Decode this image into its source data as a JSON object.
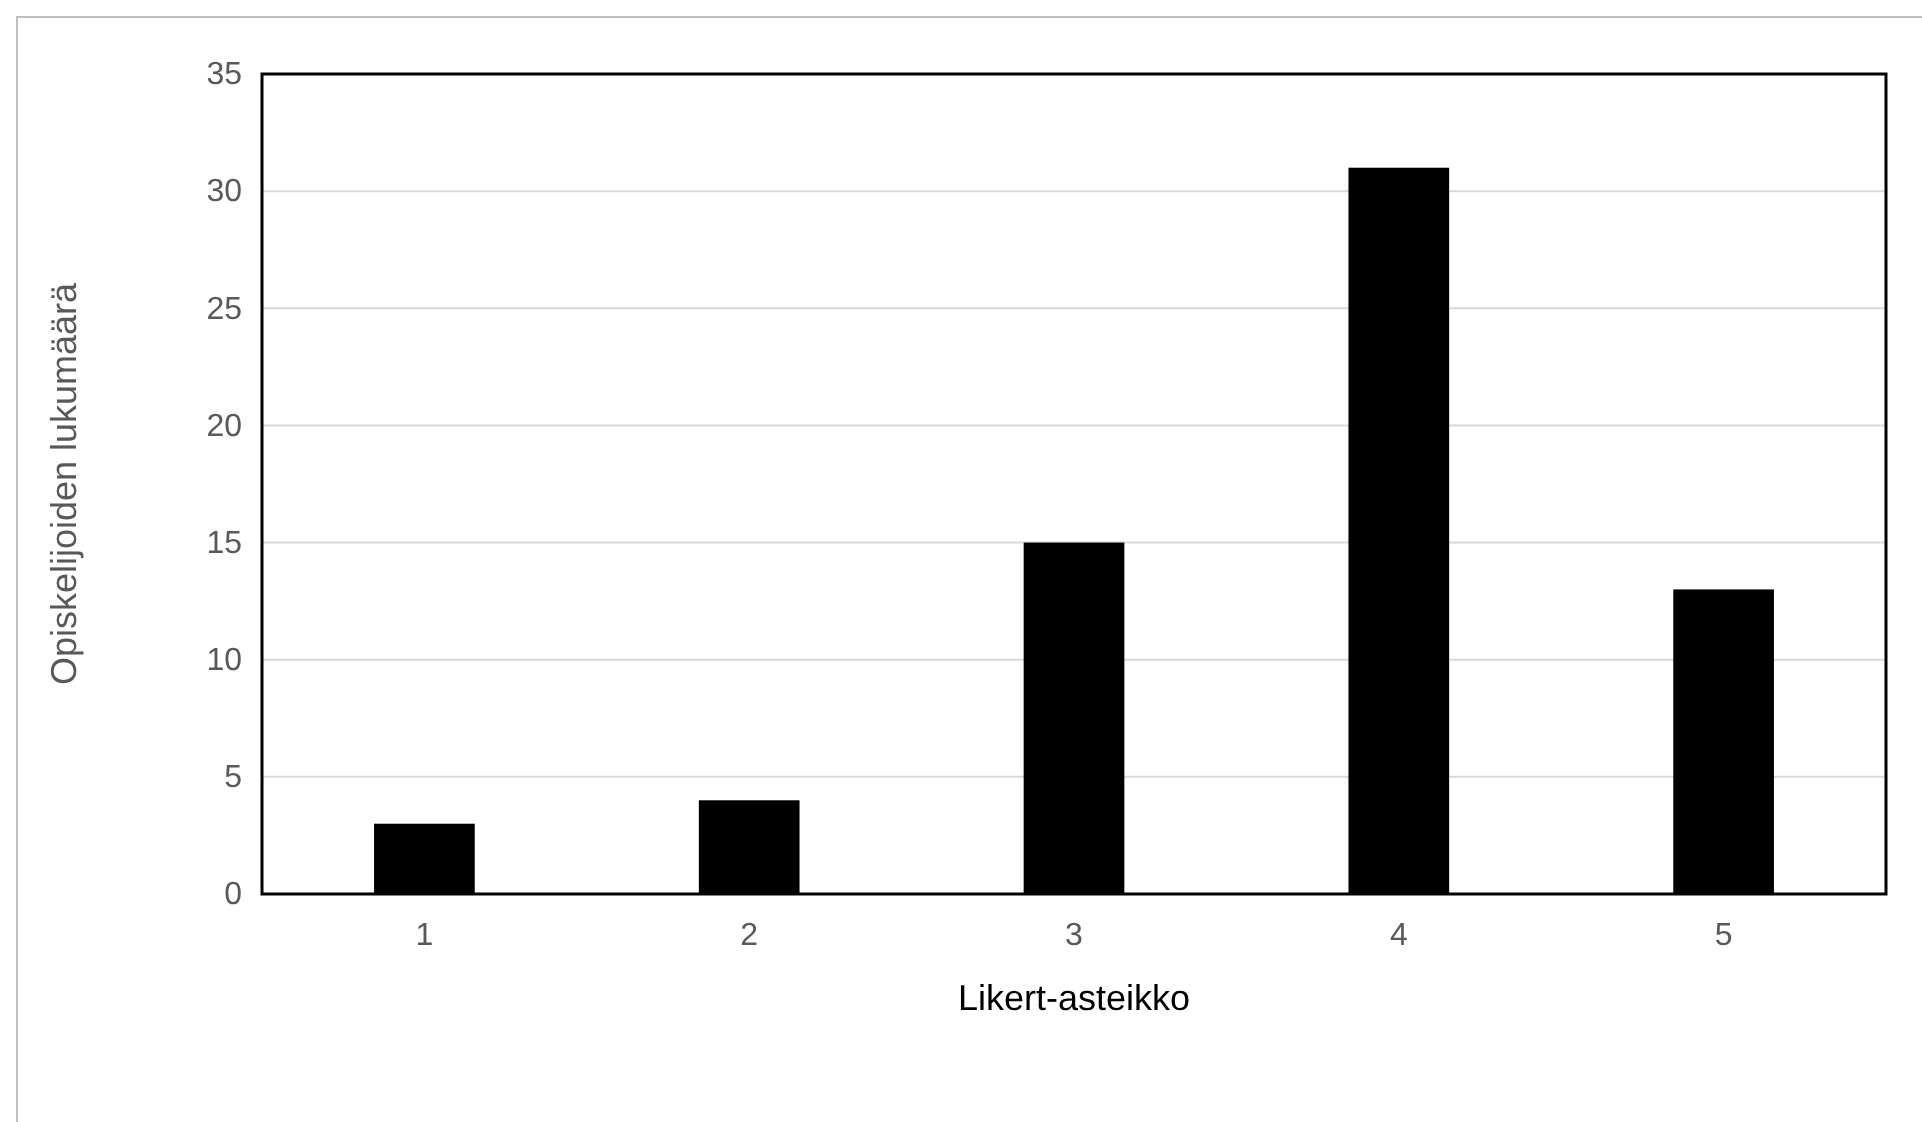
{
  "chart_data": {
    "type": "bar",
    "xlabel": "Likert-asteikko",
    "ylabel": "Opiskelijoiden lukumäärä",
    "categories": [
      "1",
      "2",
      "3",
      "4",
      "5"
    ],
    "values": [
      3,
      4,
      15,
      31,
      13
    ],
    "color": "#000000",
    "ylim": [
      0,
      35
    ],
    "yticks": [
      0,
      5,
      10,
      15,
      20,
      25,
      30,
      35
    ],
    "grid": "y"
  }
}
